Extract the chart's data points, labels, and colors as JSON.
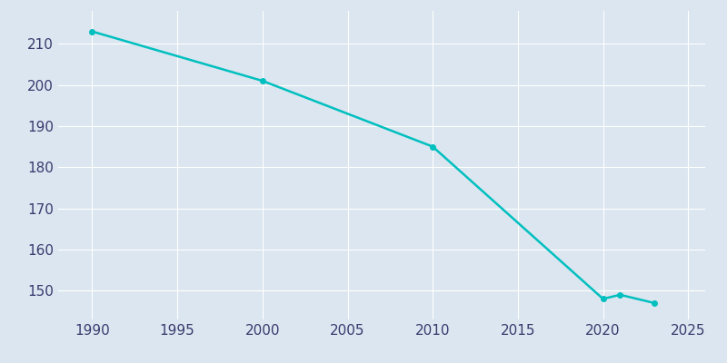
{
  "years": [
    1990,
    2000,
    2010,
    2020,
    2021,
    2023
  ],
  "population": [
    213,
    201,
    185,
    148,
    149,
    147
  ],
  "line_color": "#00BFBF",
  "marker": "o",
  "marker_size": 4,
  "bg_color": "#dce6f0",
  "fig_bg_color": "#dce6f0",
  "xlim": [
    1988,
    2026
  ],
  "ylim": [
    143,
    218
  ],
  "xticks": [
    1990,
    1995,
    2000,
    2005,
    2010,
    2015,
    2020,
    2025
  ],
  "yticks": [
    150,
    160,
    170,
    180,
    190,
    200,
    210
  ],
  "grid_color": "#ffffff",
  "tick_color": "#3a3a6e",
  "tick_fontsize": 11,
  "linewidth": 1.8
}
